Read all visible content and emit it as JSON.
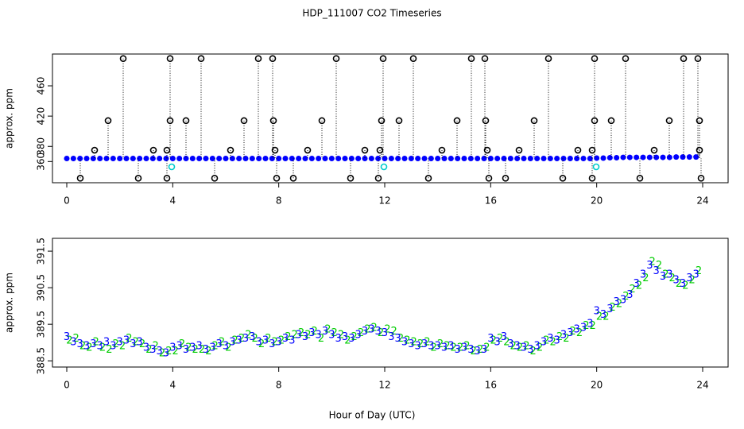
{
  "title": "HDP_111007  CO2 Timeseries",
  "chart_data": [
    {
      "type": "scatter",
      "ylabel": "approx. ppm",
      "xlim": [
        -0.54,
        24.96
      ],
      "xticks": [
        0,
        4,
        8,
        12,
        16,
        20,
        24
      ],
      "ylim": [
        332,
        502
      ],
      "yticks": [
        360,
        380,
        420,
        460
      ],
      "series": [
        {
          "color": "#0000ff",
          "marker": "dot",
          "x": [
            0,
            0.25,
            0.5,
            0.75,
            1,
            1.25,
            1.5,
            1.75,
            2,
            2.25,
            2.5,
            2.75,
            3,
            3.25,
            3.5,
            3.75,
            4,
            4.25,
            4.5,
            4.75,
            5,
            5.25,
            5.5,
            5.75,
            6,
            6.25,
            6.5,
            6.75,
            7,
            7.25,
            7.5,
            7.75,
            8,
            8.25,
            8.5,
            8.75,
            9,
            9.25,
            9.5,
            9.75,
            10,
            10.25,
            10.5,
            10.75,
            11,
            11.25,
            11.5,
            11.75,
            12,
            12.25,
            12.5,
            12.75,
            13,
            13.25,
            13.5,
            13.75,
            14,
            14.25,
            14.5,
            14.75,
            15,
            15.25,
            15.5,
            15.75,
            16,
            16.25,
            16.5,
            16.75,
            17,
            17.25,
            17.5,
            17.75,
            18,
            18.25,
            18.5,
            18.75,
            19,
            19.25,
            19.5,
            19.75,
            20,
            20.25,
            20.5,
            20.75,
            21,
            21.25,
            21.5,
            21.75,
            22,
            22.25,
            22.5,
            22.75,
            23,
            23.25,
            23.5,
            23.75
          ],
          "values": [
            364,
            364,
            364,
            364,
            364,
            364,
            364,
            364,
            364,
            364,
            364,
            364,
            364,
            364,
            364,
            364,
            364,
            364,
            364,
            364,
            364,
            364,
            364,
            364,
            364,
            364,
            364,
            364,
            364,
            364,
            364,
            364,
            364,
            364,
            364,
            364,
            364,
            364,
            364,
            364,
            364,
            364,
            364,
            364,
            364,
            364,
            364,
            364,
            364,
            364,
            364,
            364,
            364,
            364,
            364,
            364,
            364,
            364,
            364,
            364,
            364,
            364,
            364,
            364,
            364,
            364,
            364,
            364,
            364,
            364,
            364,
            364,
            364,
            364,
            364,
            364,
            364,
            364,
            364,
            364,
            364.5,
            364.5,
            365,
            365,
            365.5,
            365.5,
            365.5,
            365.5,
            365.5,
            365.5,
            365.5,
            365.5,
            366,
            366,
            366,
            366
          ]
        },
        {
          "color": "#000000",
          "marker": "ring",
          "drop_lines": true,
          "x": [
            2.13,
            3.9,
            5.07,
            7.23,
            7.77,
            10.17,
            11.94,
            13.08,
            15.27,
            15.78,
            18.18,
            19.92,
            21.09,
            23.28,
            23.82,
            1.56,
            3.9,
            4.5,
            6.69,
            7.8,
            9.63,
            11.88,
            12.54,
            14.73,
            15.81,
            17.64,
            19.92,
            20.55,
            22.74,
            23.88,
            1.05,
            3.27,
            3.78,
            6.18,
            7.86,
            9.09,
            11.25,
            11.82,
            14.16,
            15.87,
            17.07,
            19.29,
            19.83,
            22.17,
            23.88,
            0.51,
            2.7,
            3.78,
            5.58,
            7.92,
            8.55,
            10.71,
            11.76,
            13.65,
            15.93,
            16.56,
            18.72,
            19.83,
            21.63,
            23.94
          ],
          "values": [
            496,
            496,
            496,
            496,
            496,
            496,
            496,
            496,
            496,
            496,
            496,
            496,
            496,
            496,
            496,
            414,
            414,
            414,
            414,
            414,
            414,
            414,
            414,
            414,
            414,
            414,
            414,
            414,
            414,
            414,
            375,
            375,
            375,
            375,
            375,
            375,
            375,
            375,
            375,
            375,
            375,
            375,
            375,
            375,
            375,
            338,
            338,
            338,
            338,
            338,
            338,
            338,
            338,
            338,
            338,
            338,
            338,
            338,
            338,
            338
          ]
        },
        {
          "color": "#00cccc",
          "marker": "ring",
          "x": [
            3.96,
            11.97,
            19.98
          ],
          "values": [
            353,
            353,
            353
          ]
        }
      ]
    },
    {
      "type": "scatter",
      "ylabel": "approx. ppm",
      "xlabel": "Hour of Day (UTC)",
      "xlim": [
        -0.54,
        24.96
      ],
      "xticks": [
        0,
        4,
        8,
        12,
        16,
        20,
        24
      ],
      "ylim": [
        388.33,
        391.85
      ],
      "yticks": [
        388.5,
        389.5,
        390.5,
        391.5
      ],
      "series": [
        {
          "color": "#00cc00",
          "marker": "2",
          "x": [
            0.1,
            0.35,
            0.6,
            0.85,
            1.1,
            1.35,
            1.6,
            1.85,
            2.1,
            2.35,
            2.6,
            2.85,
            3.1,
            3.35,
            3.6,
            3.85,
            4.1,
            4.35,
            4.6,
            4.85,
            5.1,
            5.35,
            5.6,
            5.85,
            6.1,
            6.35,
            6.6,
            6.85,
            7.1,
            7.35,
            7.6,
            7.85,
            8.1,
            8.35,
            8.6,
            8.85,
            9.1,
            9.35,
            9.6,
            9.85,
            10.1,
            10.35,
            10.6,
            10.85,
            11.1,
            11.35,
            11.6,
            11.85,
            12.1,
            12.35,
            12.6,
            12.85,
            13.1,
            13.35,
            13.6,
            13.85,
            14.1,
            14.35,
            14.6,
            14.85,
            15.1,
            15.35,
            15.6,
            15.85,
            16.1,
            16.35,
            16.6,
            16.85,
            17.1,
            17.35,
            17.6,
            17.85,
            18.1,
            18.35,
            18.6,
            18.85,
            19.1,
            19.35,
            19.6,
            19.85,
            20.1,
            20.35,
            20.6,
            20.85,
            21.1,
            21.35,
            21.6,
            21.85,
            22.1,
            22.35,
            22.6,
            22.85,
            23.1,
            23.35,
            23.6,
            23.85
          ],
          "values": [
            389.05,
            389.1,
            388.9,
            388.85,
            389.0,
            388.85,
            388.8,
            388.95,
            388.9,
            389.1,
            389.0,
            388.95,
            388.8,
            388.9,
            388.7,
            388.75,
            388.75,
            388.95,
            388.85,
            388.8,
            388.8,
            388.75,
            388.9,
            389.0,
            388.85,
            389.05,
            389.1,
            389.2,
            389.1,
            388.95,
            389.1,
            389.0,
            389.05,
            389.15,
            389.2,
            389.25,
            389.2,
            389.3,
            389.1,
            389.35,
            389.25,
            389.2,
            389.05,
            389.15,
            389.25,
            389.35,
            389.4,
            389.25,
            389.35,
            389.3,
            389.1,
            389.05,
            389.0,
            388.95,
            389.0,
            388.85,
            388.95,
            388.9,
            388.85,
            388.85,
            388.9,
            388.75,
            388.8,
            388.85,
            389.05,
            389.1,
            389.0,
            388.9,
            388.85,
            388.9,
            388.75,
            388.85,
            389.05,
            389.0,
            389.15,
            389.1,
            389.3,
            389.25,
            389.45,
            389.45,
            389.7,
            389.7,
            389.95,
            390.05,
            390.25,
            390.45,
            390.55,
            390.75,
            391.2,
            391.1,
            390.85,
            390.75,
            390.6,
            390.55,
            390.7,
            390.95
          ]
        },
        {
          "color": "#0000ff",
          "marker": "3",
          "x": [
            0,
            0.25,
            0.5,
            0.75,
            1,
            1.25,
            1.5,
            1.75,
            2,
            2.25,
            2.5,
            2.75,
            3,
            3.25,
            3.5,
            3.75,
            4,
            4.25,
            4.5,
            4.75,
            5,
            5.25,
            5.5,
            5.75,
            6,
            6.25,
            6.5,
            6.75,
            7,
            7.25,
            7.5,
            7.75,
            8,
            8.25,
            8.5,
            8.75,
            9,
            9.25,
            9.5,
            9.75,
            10,
            10.25,
            10.5,
            10.75,
            11,
            11.25,
            11.5,
            11.75,
            12,
            12.25,
            12.5,
            12.75,
            13,
            13.25,
            13.5,
            13.75,
            14,
            14.25,
            14.5,
            14.75,
            15,
            15.25,
            15.5,
            15.75,
            16,
            16.25,
            16.5,
            16.75,
            17,
            17.25,
            17.5,
            17.75,
            18,
            18.25,
            18.5,
            18.75,
            19,
            19.25,
            19.5,
            19.75,
            20,
            20.25,
            20.5,
            20.75,
            21,
            21.25,
            21.5,
            21.75,
            22,
            22.25,
            22.5,
            22.75,
            23,
            23.25,
            23.5,
            23.75
          ],
          "values": [
            389.15,
            389.0,
            388.95,
            388.9,
            388.95,
            388.9,
            389.0,
            388.9,
            389.0,
            389.05,
            388.95,
            389.0,
            388.85,
            388.8,
            388.75,
            388.7,
            388.85,
            388.9,
            388.8,
            388.85,
            388.9,
            388.8,
            388.85,
            388.95,
            388.9,
            389.0,
            389.05,
            389.1,
            389.15,
            389.0,
            389.05,
            388.95,
            389.0,
            389.1,
            389.05,
            389.2,
            389.15,
            389.25,
            389.2,
            389.3,
            389.2,
            389.1,
            389.15,
            389.1,
            389.2,
            389.3,
            389.35,
            389.3,
            389.25,
            389.15,
            389.1,
            389.0,
            388.95,
            388.9,
            388.95,
            388.9,
            388.9,
            388.85,
            388.9,
            388.8,
            388.85,
            388.8,
            388.75,
            388.8,
            389.1,
            389.0,
            389.15,
            388.95,
            388.9,
            388.85,
            388.8,
            388.9,
            389.0,
            389.1,
            389.05,
            389.2,
            389.25,
            389.35,
            389.4,
            389.5,
            389.85,
            389.75,
            389.9,
            390.1,
            390.15,
            390.3,
            390.6,
            390.85,
            391.1,
            390.95,
            390.8,
            390.85,
            390.7,
            390.6,
            390.75,
            390.85
          ]
        }
      ]
    }
  ]
}
